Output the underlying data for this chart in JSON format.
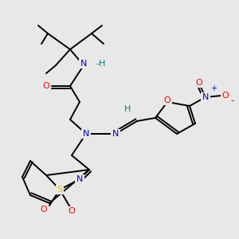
{
  "background_color": "#e8e8e8",
  "colors": {
    "C": "#000000",
    "N": "#0000cd",
    "O": "#ff0000",
    "S": "#cccc00",
    "H": "#008080",
    "bond": "#000000"
  },
  "figsize": [
    3.0,
    3.0
  ],
  "dpi": 100
}
